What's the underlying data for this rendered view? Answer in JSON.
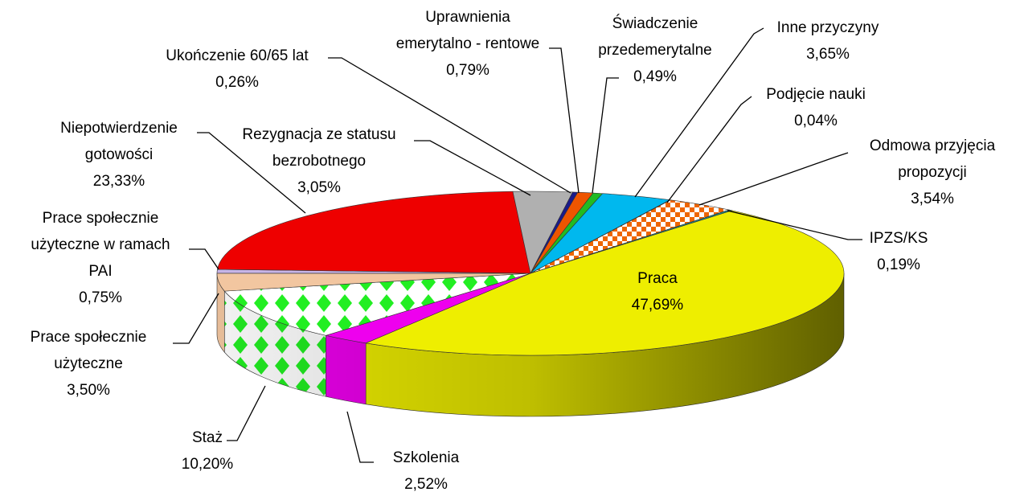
{
  "chart_data": {
    "type": "pie3d",
    "categories": [
      "Praca",
      "Szkolenia",
      "Staż",
      "Prace społecznie użyteczne",
      "Prace społecznie użyteczne w ramach PAI",
      "Niepotwierdzenie gotowości",
      "Rezygnacja ze statusu bezrobotnego",
      "Ukończenie 60/65 lat",
      "Uprawnienia emerytalno - rentowe",
      "Świadczenie przedemerytalne",
      "Inne przyczyny",
      "Podjęcie nauki",
      "Odmowa przyjęcia propozycji",
      "IPZS/KS"
    ],
    "values": [
      47.69,
      2.52,
      10.2,
      3.5,
      0.75,
      23.33,
      3.05,
      0.26,
      0.79,
      0.49,
      3.65,
      0.04,
      3.54,
      0.19
    ],
    "value_labels": [
      "47,69%",
      "2,52%",
      "10,20%",
      "3,50%",
      "0,75%",
      "23,33%",
      "3,05%",
      "0,26%",
      "0,79%",
      "0,49%",
      "3,65%",
      "0,04%",
      "3,54%",
      "0,19%"
    ],
    "colors": [
      "#eeee00",
      "#ee00ee",
      "#22ee22",
      "#f2c6a0",
      "#c8b4e6",
      "#ee0000",
      "#b0b0b0",
      "#1a1a8a",
      "#ee5500",
      "#22bb22",
      "#00b8ee",
      "#dddddd",
      "#ee6600",
      "#1a8a8a"
    ],
    "fills": [
      "solid",
      "solid",
      "diamond",
      "solid",
      "solid",
      "solid",
      "solid",
      "solid",
      "solid",
      "solid",
      "solid",
      "solid",
      "checker",
      "solid"
    ]
  }
}
